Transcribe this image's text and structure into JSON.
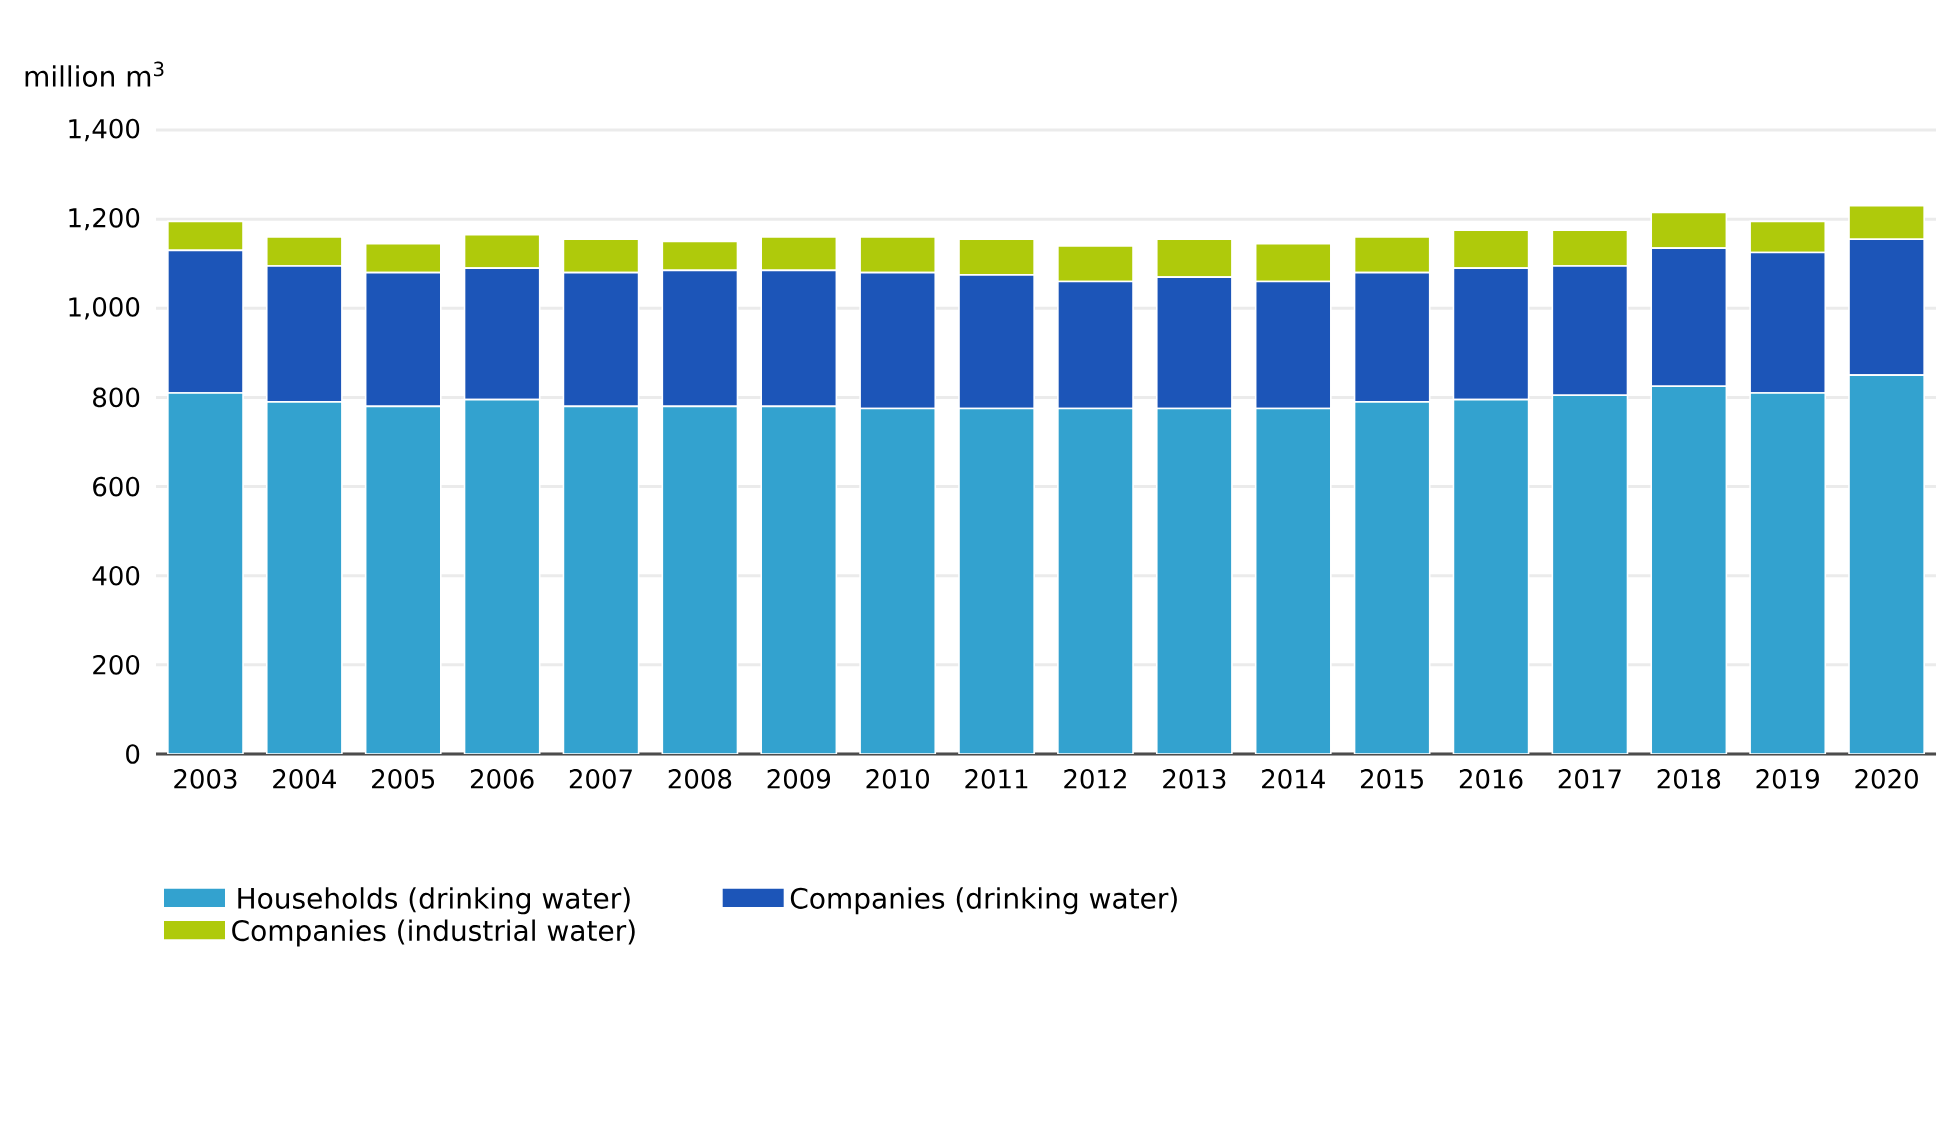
{
  "chart_data": {
    "type": "bar",
    "stacked": true,
    "ylabel": "million m$^{3}$",
    "categories": [
      "2003",
      "2004",
      "2005",
      "2006",
      "2007",
      "2008",
      "2009",
      "2010",
      "2011",
      "2012",
      "2013",
      "2014",
      "2015",
      "2016",
      "2017",
      "2018",
      "2019",
      "2020"
    ],
    "series": [
      {
        "name": "Households (drinking water)",
        "color": "#33a2cf",
        "values": [
          810,
          790,
          780,
          795,
          780,
          780,
          780,
          775,
          775,
          775,
          775,
          775,
          790,
          795,
          805,
          825,
          810,
          850
        ]
      },
      {
        "name": "Companies (drinking water)",
        "color": "#1c55b8",
        "values": [
          320,
          305,
          300,
          295,
          300,
          305,
          305,
          305,
          300,
          285,
          295,
          285,
          290,
          295,
          290,
          310,
          315,
          305
        ]
      },
      {
        "name": "Companies (industrial water)",
        "color": "#afca0b",
        "values": [
          65,
          65,
          65,
          75,
          75,
          65,
          75,
          80,
          80,
          80,
          85,
          85,
          80,
          85,
          80,
          80,
          70,
          75
        ]
      }
    ],
    "ylim": [
      0,
      1400
    ],
    "yticks": [
      0,
      200,
      400,
      600,
      800,
      {
        "value": 1000,
        "label": "1,000"
      },
      {
        "value": 1200,
        "label": "1,200"
      },
      {
        "value": 1400,
        "label": "1,400"
      }
    ],
    "grid": "y",
    "legend": "bottom"
  }
}
